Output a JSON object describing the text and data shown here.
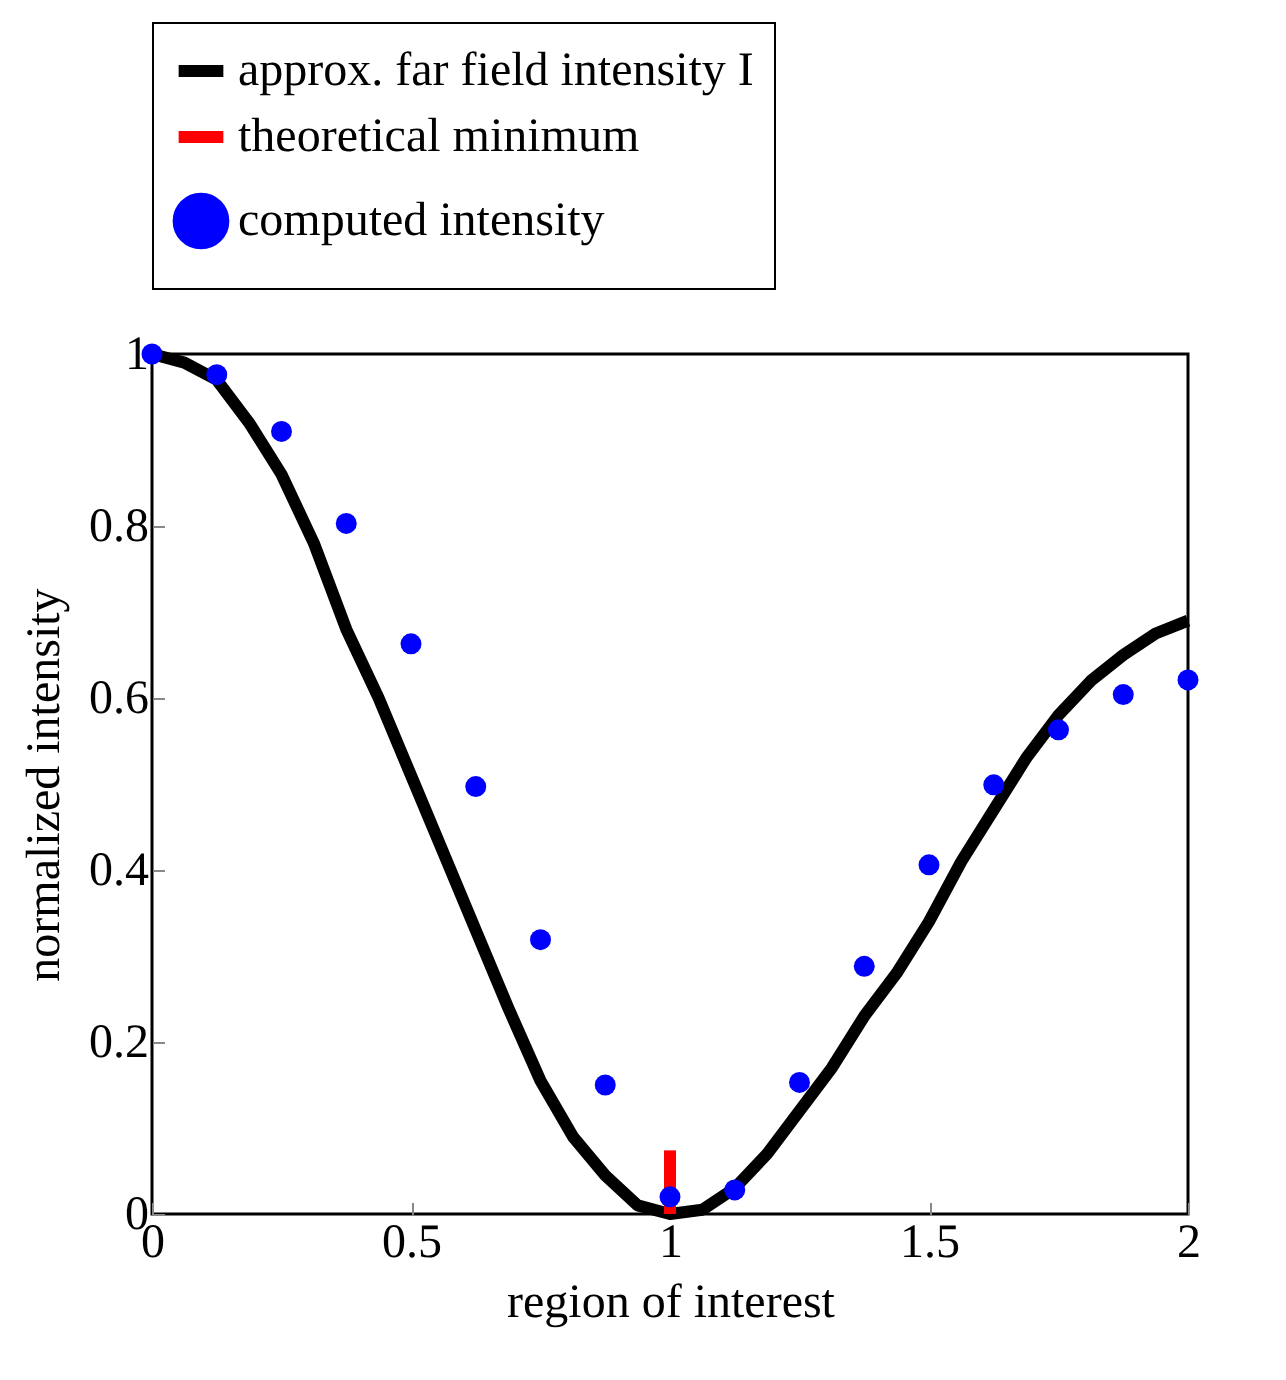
{
  "chart_data": {
    "type": "line",
    "xlabel": "region of interest",
    "ylabel": "normalized intensity",
    "xlim": [
      0,
      2
    ],
    "xticks": [
      0,
      0.5,
      1,
      1.5,
      2
    ],
    "ylim": [
      0,
      1
    ],
    "yticks": [
      0,
      0.2,
      0.4,
      0.6,
      0.8,
      1
    ],
    "grid": false,
    "legend": "top",
    "series": [
      {
        "name": "approx. far field intensity I",
        "color": "#000000",
        "x": [
          0,
          0.0625,
          0.125,
          0.1875,
          0.25,
          0.3125,
          0.375,
          0.4375,
          0.5,
          0.5625,
          0.625,
          0.6875,
          0.75,
          0.8125,
          0.875,
          0.9375,
          1,
          1.0625,
          1.125,
          1.1875,
          1.25,
          1.3125,
          1.375,
          1.4375,
          1.5,
          1.5625,
          1.625,
          1.6875,
          1.75,
          1.8125,
          1.875,
          1.9375,
          2
        ],
        "values": [
          1,
          0.99,
          0.97,
          0.92,
          0.86,
          0.78,
          0.68,
          0.6,
          0.51,
          0.42,
          0.33,
          0.24,
          0.155,
          0.09,
          0.045,
          0.01,
          0,
          0.005,
          0.03,
          0.07,
          0.12,
          0.17,
          0.23,
          0.28,
          0.34,
          0.41,
          0.47,
          0.53,
          0.58,
          0.62,
          0.65,
          0.675,
          0.69
        ]
      },
      {
        "name": "theoretical minimum",
        "type": "line",
        "color": "#ff0000",
        "x": [
          1,
          1
        ],
        "values": [
          0,
          0.074
        ]
      },
      {
        "name": "computed intensity",
        "type": "scatter",
        "color": "#0000ff",
        "marker": "circle",
        "x": [
          0,
          0.125,
          0.25,
          0.375,
          0.5,
          0.625,
          0.75,
          0.875,
          1,
          1.125,
          1.25,
          1.375,
          1.5,
          1.625,
          1.75,
          1.875,
          2
        ],
        "values": [
          1,
          0.976,
          0.91,
          0.803,
          0.663,
          0.497,
          0.319,
          0.15,
          0.02,
          0.028,
          0.153,
          0.288,
          0.406,
          0.499,
          0.563,
          0.604,
          0.621
        ]
      }
    ]
  }
}
